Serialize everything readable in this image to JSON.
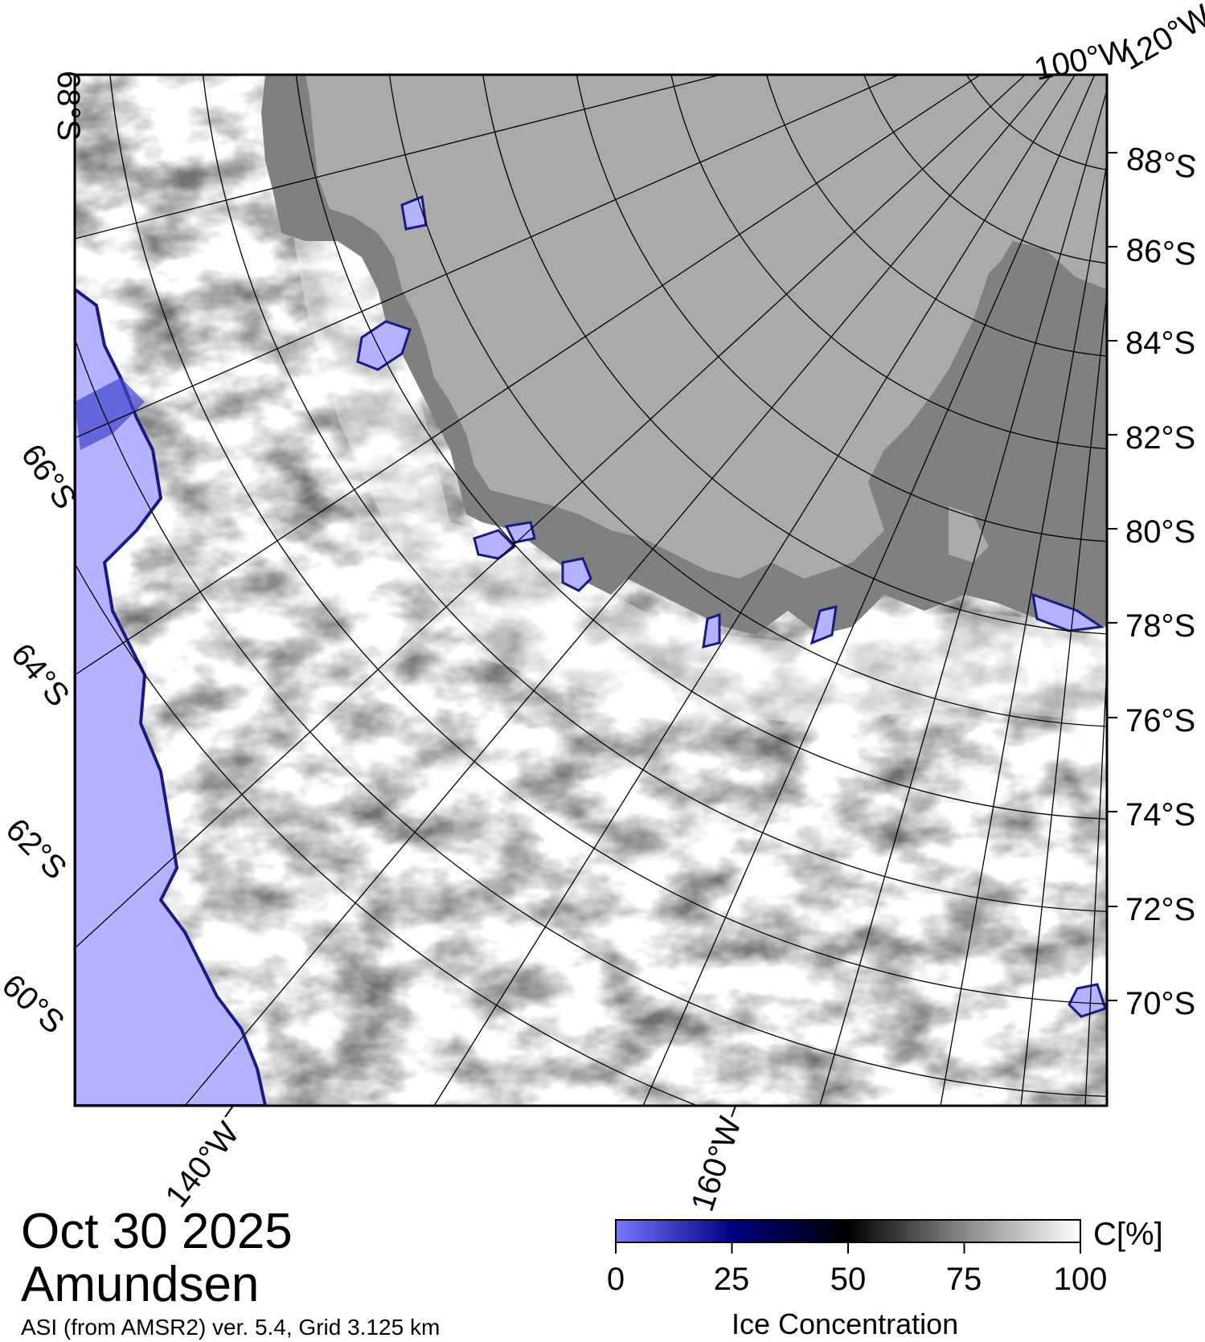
{
  "map": {
    "date": "Oct 30 2025",
    "region": "Amundsen",
    "product": "ASI (from AMSR2) ver. 5.4,  Grid 3.125 km",
    "colors": {
      "open_water": "#b3b3ff",
      "land": "#aaaaaa",
      "ice_shelf": "#808080",
      "ice_full": "#ffffff",
      "ice_mid": "#000000",
      "ice_low": "#000066",
      "frame": "#000000"
    },
    "lat_labels_right": [
      "88°S",
      "86°S",
      "84°S",
      "82°S",
      "80°S",
      "78°S",
      "76°S",
      "74°S",
      "72°S",
      "70°S"
    ],
    "lat_labels_left": [
      "68°S",
      "66°S",
      "64°S",
      "62°S",
      "60°S"
    ],
    "lon_labels_bottom": [
      "140°W",
      "160°W"
    ],
    "lon_labels_top": [
      "100°W",
      "120°W"
    ]
  },
  "colorbar": {
    "title": "Ice Concentration",
    "unit": "C[%]",
    "ticks": [
      "0",
      "25",
      "50",
      "75",
      "100"
    ],
    "range": [
      0,
      100
    ]
  }
}
